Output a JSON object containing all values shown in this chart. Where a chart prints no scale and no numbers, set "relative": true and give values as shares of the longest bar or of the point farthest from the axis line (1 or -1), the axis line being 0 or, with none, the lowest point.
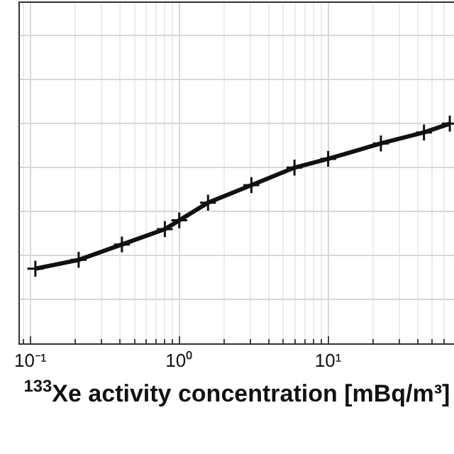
{
  "chart_data": {
    "type": "line",
    "relative": true,
    "xlabel": "$^{133}$Xe activity concentration [mBq/m³]",
    "log": "x",
    "xlim": [
      0.085,
      70
    ],
    "xticks": [
      {
        "value": 0.1,
        "label": "10⁻¹"
      },
      {
        "value": 1,
        "label": "10⁰"
      },
      {
        "value": 10,
        "label": "10¹"
      }
    ],
    "grid": true,
    "marker": "cross",
    "tick_labels": "x",
    "series": [
      {
        "color": "#111111",
        "x": [
          0.108,
          0.211,
          0.412,
          0.8,
          1.0,
          1.56,
          3.05,
          5.94,
          10,
          22.6,
          44,
          65.6
        ],
        "values": [
          0.34,
          0.38,
          0.45,
          0.52,
          0.56,
          0.64,
          0.72,
          0.8,
          0.84,
          0.91,
          0.96,
          1.0
        ]
      }
    ]
  }
}
